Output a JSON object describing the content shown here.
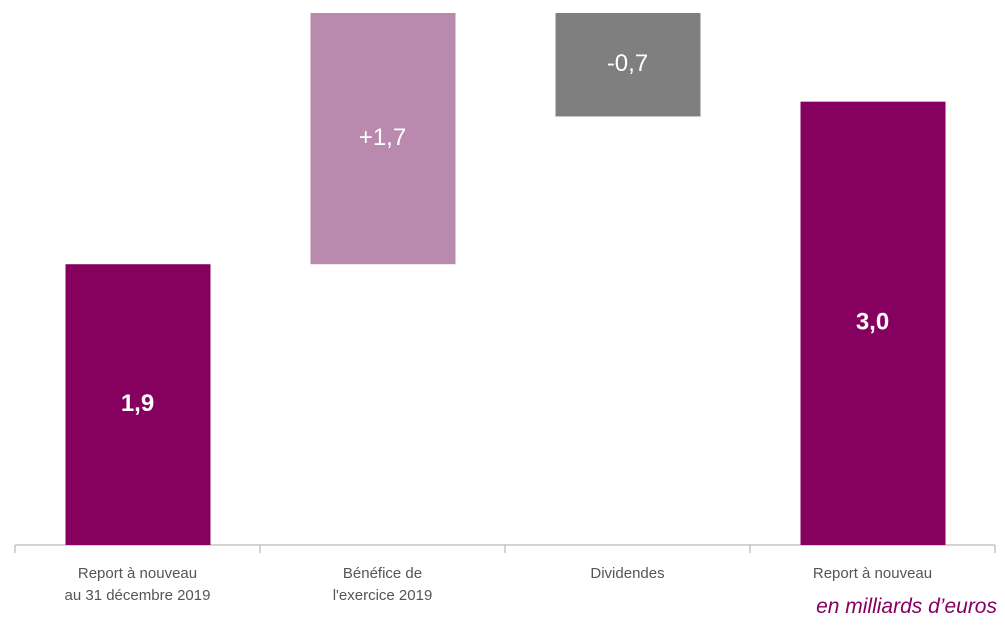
{
  "chart_data": {
    "type": "waterfall",
    "categories": [
      "Report à nouveau\nau 31 décembre 2019",
      "Bénéfice de\nl'exercice 2019",
      "Dividendes",
      "Report à nouveau"
    ],
    "values": [
      1.9,
      1.7,
      -0.7,
      3.0
    ],
    "value_labels": [
      "1,9",
      "+1,7",
      "-0,7",
      "3,0"
    ],
    "totals": [
      true,
      false,
      false,
      true
    ],
    "colors": [
      "#85005f",
      "#b98aae",
      "#7f7f7f",
      "#85005f"
    ],
    "note": "en milliards d’euros"
  }
}
